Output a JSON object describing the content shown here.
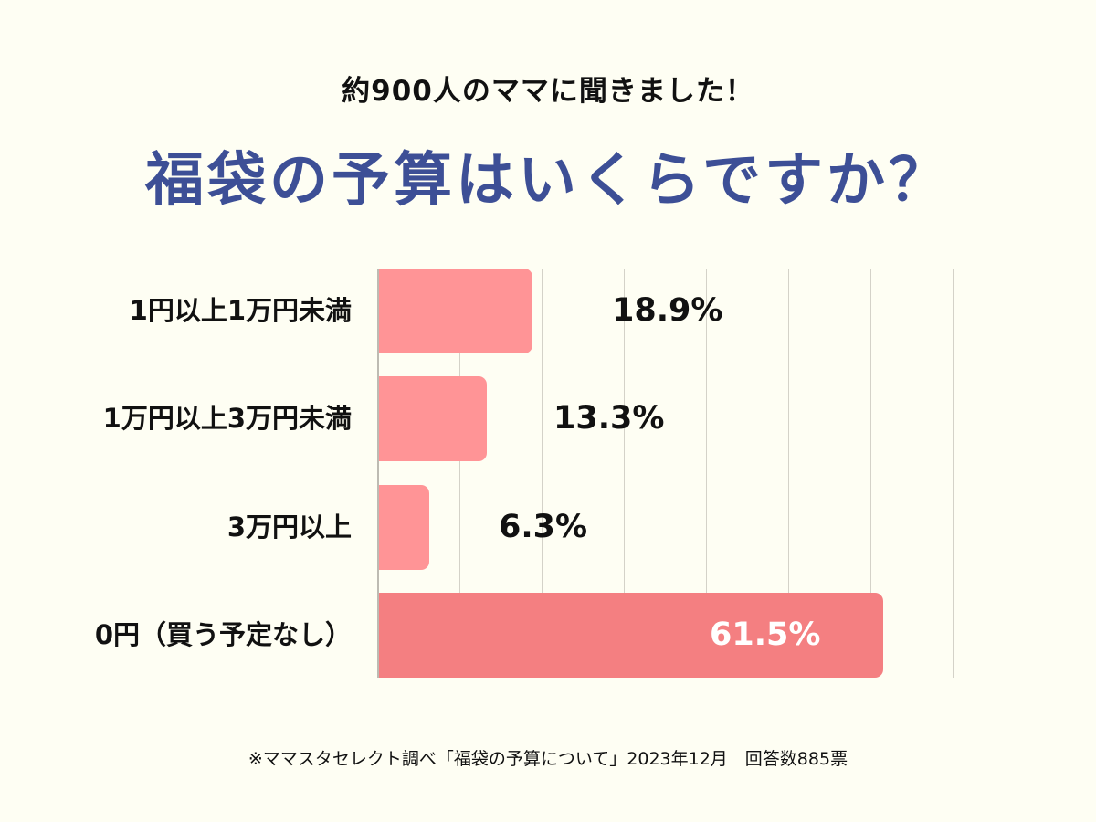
{
  "header": {
    "subtitle": "約900人のママに聞きました！",
    "title": "福袋の予算はいくらですか？"
  },
  "footer": {
    "note": "※ママスタセレクト調べ「福袋の予算について」2023年12月　回答数885票"
  },
  "colors": {
    "background": "#fefef3",
    "title": "#3d4f96",
    "bar": "#ff9496",
    "bar_highlight": "#f47f81",
    "gridline": "#d4d2c8"
  },
  "chart_data": {
    "type": "bar",
    "orientation": "horizontal",
    "title": "福袋の予算はいくらですか？",
    "subtitle": "約900人のママに聞きました！",
    "categories": [
      "1円以上1万円未満",
      "1万円以上3万円未満",
      "3万円以上",
      "0円（買う予定なし）"
    ],
    "values": [
      18.9,
      13.3,
      6.3,
      61.5
    ],
    "value_labels": [
      "18.9%",
      "13.3%",
      "6.3%",
      "61.5%"
    ],
    "unit": "%",
    "xlabel": "",
    "ylabel": "",
    "xlim": [
      0,
      70
    ],
    "grid": true,
    "grid_step": 10,
    "legend": null,
    "source_note": "※ママスタセレクト調べ「福袋の予算について」2023年12月　回答数885票"
  }
}
